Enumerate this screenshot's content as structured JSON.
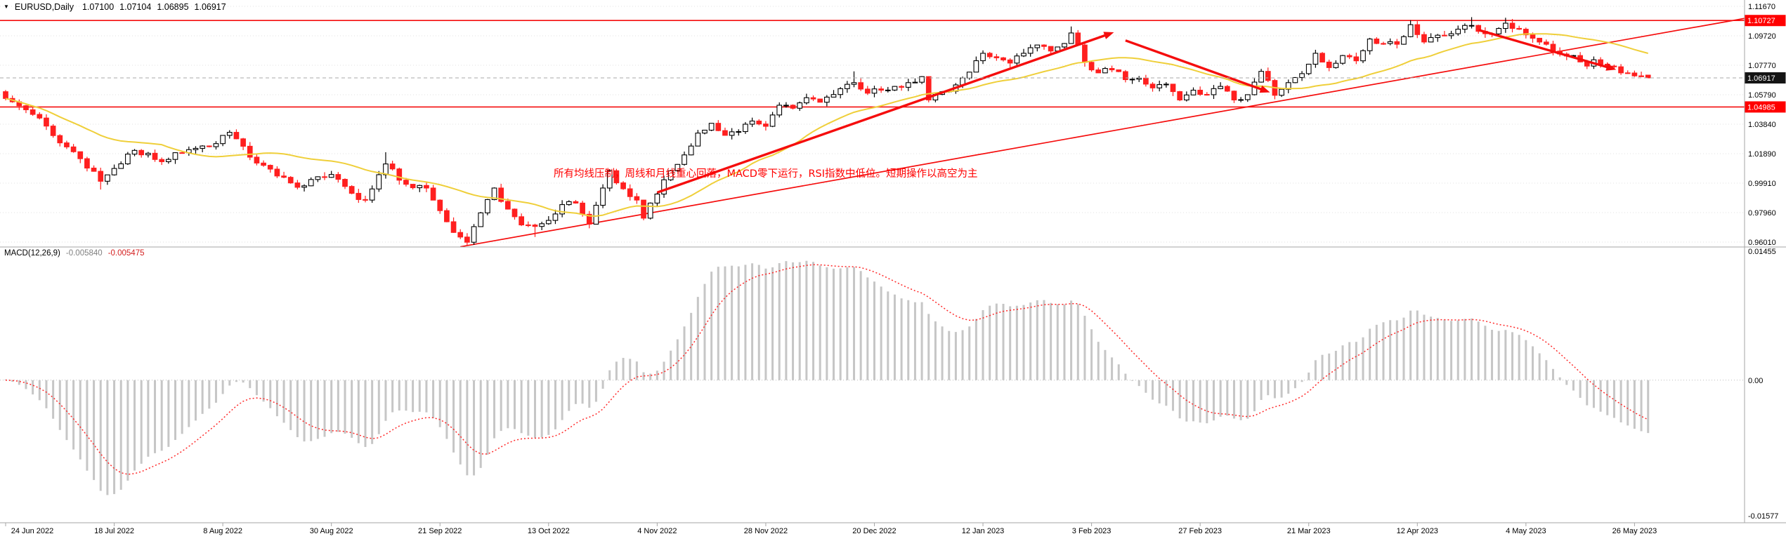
{
  "window": {
    "menu_icon": "▼",
    "symbol_period": "EURUSD,Daily",
    "ohlc": {
      "open": "1.07100",
      "high": "1.07104",
      "low": "1.06895",
      "close": "1.06917"
    }
  },
  "annotation_note": {
    "text": "所有均线压制，周线和月线重心回落，MACD零下运行，RSI指数中低位。短期操作以高空为主",
    "color": "#ff0000"
  },
  "macd_panel": {
    "label": "MACD(12,26,9)",
    "main_value": "-0.005840",
    "signal_value": "-0.005475",
    "axis_labels": [
      "0.01455",
      "0.00",
      "-0.01577"
    ]
  },
  "price_axis": {
    "labels": [
      "1.11670",
      "1.09720",
      "1.07770",
      "1.05790",
      "1.03840",
      "1.01890",
      "0.99910",
      "0.97960",
      "0.96010"
    ],
    "badges": [
      {
        "text": "1.10727",
        "price": 1.10727,
        "style": "line"
      },
      {
        "text": "1.06917",
        "price": 1.06917,
        "style": "current"
      },
      {
        "text": "1.04985",
        "price": 1.04985,
        "style": "line"
      }
    ]
  },
  "time_axis": {
    "bars_per_label": 16,
    "labels": [
      "24 Jun 2022",
      "18 Jul 2022",
      "8 Aug 2022",
      "30 Aug 2022",
      "21 Sep 2022",
      "13 Oct 2022",
      "4 Nov 2022",
      "28 Nov 2022",
      "20 Dec 2022",
      "12 Jan 2023",
      "3 Feb 2023",
      "27 Feb 2023",
      "21 Mar 2023",
      "12 Apr 2023",
      "4 May 2023",
      "26 May 2023"
    ]
  },
  "colors": {
    "bull_fill": "#ffffff",
    "bull_border": "#000000",
    "bear": "#ff1f1f",
    "ma": "#efcf3a",
    "hline": "#f50d0d",
    "drawing": "#f50d0d",
    "histogram": "#c6c6c6",
    "signal": "#ff2a2a",
    "grid": "#e0e0e0",
    "separator": "#a6a6a6",
    "axis_text": "#000000",
    "badge_line_bg": "#ff0000",
    "badge_current_bg": "#141414",
    "current_price_line": "#aaaaaa"
  },
  "chart_data": {
    "type": "candlestick",
    "title": "EURUSD,Daily",
    "symbol": "EURUSD",
    "timeframe": "Daily",
    "ylim": [
      0.9601,
      1.1167
    ],
    "macd_ylim": [
      -0.01577,
      0.01455
    ],
    "bar_count": 243,
    "x_labels": [
      "24 Jun 2022",
      "18 Jul 2022",
      "8 Aug 2022",
      "30 Aug 2022",
      "21 Sep 2022",
      "13 Oct 2022",
      "4 Nov 2022",
      "28 Nov 2022",
      "20 Dec 2022",
      "12 Jan 2023",
      "3 Feb 2023",
      "27 Feb 2023",
      "21 Mar 2023",
      "12 Apr 2023",
      "4 May 2023",
      "26 May 2023"
    ],
    "current_candle": {
      "open": 1.071,
      "high": 1.07104,
      "low": 1.06895,
      "close": 1.06917
    },
    "current_price": 1.06917,
    "hlines": [
      1.10727,
      1.04985
    ],
    "moving_average_period": 24,
    "macd_params": [
      12,
      26,
      9
    ],
    "macd_last": {
      "main": -0.00584,
      "signal": -0.005475
    },
    "close_keyframes": [
      [
        0,
        1.0555
      ],
      [
        3,
        1.048
      ],
      [
        5,
        1.0425
      ],
      [
        8,
        1.026
      ],
      [
        11,
        1.0155
      ],
      [
        14,
        1.0005
      ],
      [
        16,
        1.009
      ],
      [
        19,
        1.021
      ],
      [
        23,
        1.0135
      ],
      [
        27,
        1.0215
      ],
      [
        31,
        1.0255
      ],
      [
        33,
        1.033
      ],
      [
        36,
        1.0165
      ],
      [
        40,
        1.004
      ],
      [
        43,
        0.9965
      ],
      [
        46,
        1.0035
      ],
      [
        48,
        1.005
      ],
      [
        51,
        0.9925
      ],
      [
        53,
        0.988
      ],
      [
        56,
        1.012
      ],
      [
        59,
        0.9985
      ],
      [
        62,
        0.996
      ],
      [
        64,
        0.981
      ],
      [
        66,
        0.9665
      ],
      [
        68,
        0.96
      ],
      [
        70,
        0.9795
      ],
      [
        72,
        0.996
      ],
      [
        74,
        0.982
      ],
      [
        76,
        0.9715
      ],
      [
        78,
        0.9705
      ],
      [
        80,
        0.9745
      ],
      [
        82,
        0.985
      ],
      [
        84,
        0.986
      ],
      [
        86,
        0.972
      ],
      [
        88,
        0.996
      ],
      [
        89,
        1.0075
      ],
      [
        91,
        0.9955
      ],
      [
        93,
        0.988
      ],
      [
        94,
        0.976
      ],
      [
        96,
        0.992
      ],
      [
        98,
        1.0075
      ],
      [
        100,
        1.018
      ],
      [
        102,
        1.0325
      ],
      [
        104,
        1.039
      ],
      [
        106,
        1.031
      ],
      [
        108,
        1.0335
      ],
      [
        110,
        1.0405
      ],
      [
        112,
        1.037
      ],
      [
        114,
        1.051
      ],
      [
        116,
        1.049
      ],
      [
        118,
        1.056
      ],
      [
        120,
        1.053
      ],
      [
        123,
        1.062
      ],
      [
        125,
        1.066
      ],
      [
        127,
        1.059
      ],
      [
        129,
        1.061
      ],
      [
        131,
        1.0635
      ],
      [
        133,
        1.066
      ],
      [
        135,
        1.07
      ],
      [
        136,
        1.0545
      ],
      [
        138,
        1.06
      ],
      [
        140,
        1.0645
      ],
      [
        142,
        1.073
      ],
      [
        144,
        1.0855
      ],
      [
        146,
        1.0825
      ],
      [
        148,
        1.079
      ],
      [
        150,
        1.0855
      ],
      [
        152,
        1.091
      ],
      [
        154,
        1.087
      ],
      [
        156,
        1.092
      ],
      [
        157,
        1.099
      ],
      [
        158,
        1.091
      ],
      [
        159,
        1.0795
      ],
      [
        161,
        1.0725
      ],
      [
        163,
        1.0745
      ],
      [
        165,
        1.068
      ],
      [
        167,
        1.069
      ],
      [
        169,
        1.0625
      ],
      [
        171,
        1.065
      ],
      [
        173,
        1.0545
      ],
      [
        175,
        1.061
      ],
      [
        177,
        1.058
      ],
      [
        179,
        1.0635
      ],
      [
        181,
        1.0545
      ],
      [
        183,
        1.058
      ],
      [
        185,
        1.0735
      ],
      [
        187,
        1.0576
      ],
      [
        189,
        1.066
      ],
      [
        191,
        1.072
      ],
      [
        193,
        1.0855
      ],
      [
        195,
        1.076
      ],
      [
        197,
        1.084
      ],
      [
        199,
        1.0805
      ],
      [
        201,
        1.095
      ],
      [
        203,
        1.092
      ],
      [
        205,
        1.0915
      ],
      [
        207,
        1.1045
      ],
      [
        209,
        1.093
      ],
      [
        211,
        1.0975
      ],
      [
        213,
        1.0985
      ],
      [
        215,
        1.104
      ],
      [
        216,
        1.104
      ],
      [
        218,
        1.0985
      ],
      [
        220,
        1.102
      ],
      [
        221,
        1.1055
      ],
      [
        223,
        1.1015
      ],
      [
        225,
        1.0955
      ],
      [
        227,
        1.0915
      ],
      [
        229,
        1.085
      ],
      [
        231,
        1.084
      ],
      [
        233,
        1.077
      ],
      [
        234,
        1.0812
      ],
      [
        236,
        1.077
      ],
      [
        238,
        1.0725
      ],
      [
        240,
        1.0705
      ],
      [
        242,
        1.06917
      ]
    ],
    "wick_extremes": [
      [
        14,
        "L",
        0.995
      ],
      [
        56,
        "H",
        1.0198
      ],
      [
        68,
        "L",
        0.9575
      ],
      [
        78,
        "L",
        0.9635
      ],
      [
        86,
        "L",
        0.9705
      ],
      [
        125,
        "H",
        1.0735
      ],
      [
        157,
        "H",
        1.1033
      ],
      [
        207,
        "H",
        1.1075
      ],
      [
        216,
        "H",
        1.1095
      ],
      [
        221,
        "H",
        1.1091
      ]
    ],
    "drawings": {
      "trendline": {
        "from": {
          "bar": 67,
          "price": 0.957
        },
        "to": {
          "bar": 261,
          "price": 1.1125
        }
      },
      "impulses": [
        {
          "from": {
            "bar": 96,
            "price": 0.993
          },
          "to": {
            "bar": 163,
            "price": 1.099
          }
        },
        {
          "from": {
            "bar": 165,
            "price": 1.094
          },
          "to": {
            "bar": 186,
            "price": 1.06
          }
        },
        {
          "from": {
            "bar": 217,
            "price": 1.101
          },
          "to": {
            "bar": 237,
            "price": 1.075
          }
        }
      ]
    }
  }
}
